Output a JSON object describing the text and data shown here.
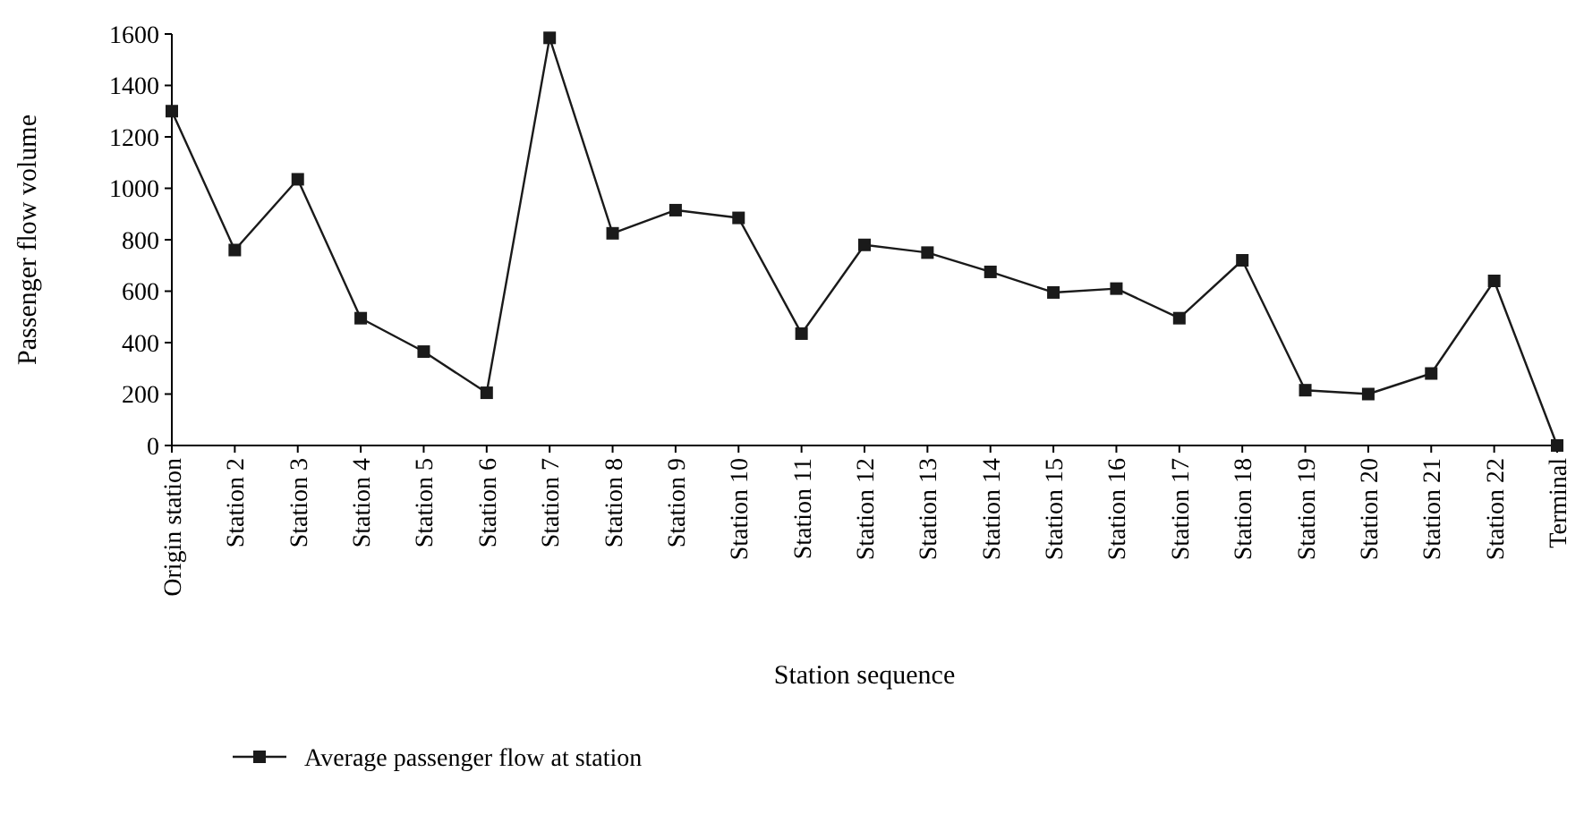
{
  "chart_data": {
    "type": "line",
    "xlabel": "Station sequence",
    "ylabel": "Passenger flow volume",
    "categories": [
      "Origin station",
      "Station 2",
      "Station 3",
      "Station 4",
      "Station 5",
      "Station 6",
      "Station 7",
      "Station 8",
      "Station 9",
      "Station 10",
      "Station 11",
      "Station 12",
      "Station 13",
      "Station 14",
      "Station 15",
      "Station 16",
      "Station 17",
      "Station 18",
      "Station 19",
      "Station 20",
      "Station 21",
      "Station 22",
      "Terminal"
    ],
    "series": [
      {
        "name": "Average passenger flow at station",
        "color": "#1a1a1a",
        "values": [
          1300,
          760,
          1035,
          495,
          365,
          205,
          1585,
          825,
          915,
          885,
          435,
          780,
          750,
          675,
          595,
          610,
          495,
          720,
          215,
          200,
          280,
          640,
          0
        ]
      }
    ],
    "ylim": [
      0,
      1600
    ],
    "yticks": [
      0,
      200,
      400,
      600,
      800,
      1000,
      1200,
      1400,
      1600
    ],
    "grid": false,
    "legend": "bottom",
    "marker": "square",
    "line_style": "solid"
  }
}
